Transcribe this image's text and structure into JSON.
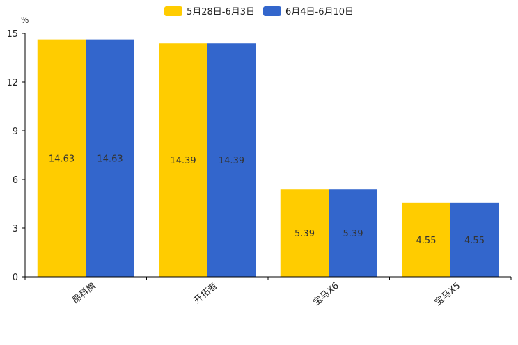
{
  "chart_data": {
    "type": "bar",
    "title": "",
    "unit_label": "%",
    "xlabel": "",
    "ylabel": "%",
    "ylim": [
      0,
      15
    ],
    "yticks": [
      0,
      3,
      6,
      9,
      12,
      15
    ],
    "categories": [
      "昂科旗",
      "开拓者",
      "宝马X6",
      "宝马X5"
    ],
    "series": [
      {
        "name": "5月28日-6月3日",
        "color": "#FFCC00",
        "values": [
          14.63,
          14.39,
          5.39,
          4.55
        ],
        "labels": [
          "14.63",
          "14.39",
          "5.39",
          "4.55"
        ]
      },
      {
        "name": "6月4日-6月10日",
        "color": "#3366CC",
        "values": [
          14.63,
          14.39,
          5.39,
          4.55
        ],
        "labels": [
          "14.63",
          "14.39",
          "5.39",
          "4.55"
        ]
      }
    ],
    "legend_position": "top-center",
    "grid": false
  }
}
